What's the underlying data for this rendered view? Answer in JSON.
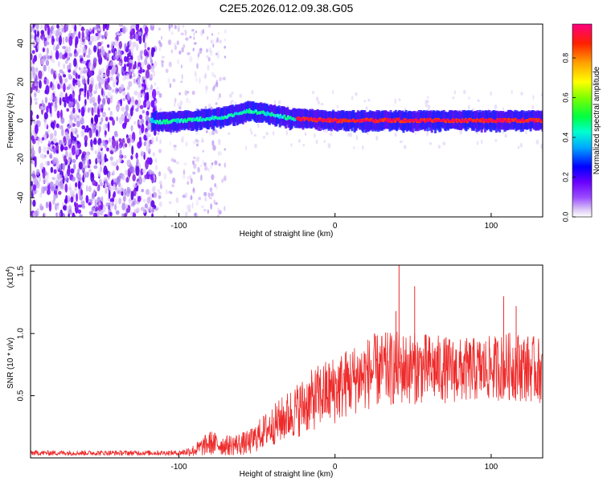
{
  "title": "C2E5.2026.012.09.38.G05",
  "chart_data": [
    {
      "type": "heatmap",
      "title": "C2E5.2026.012.09.38.G05",
      "xlabel": "Height of straight line (km)",
      "ylabel": "Frequency (Hz)",
      "xlim": [
        -195,
        133
      ],
      "ylim": [
        -50,
        50
      ],
      "x_ticks": [
        -100,
        0,
        100
      ],
      "x_tick_labels": [
        "-100",
        "0",
        "100"
      ],
      "y_ticks": [
        -40,
        -20,
        0,
        20,
        40
      ],
      "y_tick_labels": [
        "-40",
        "-20",
        "0",
        "20",
        "40"
      ],
      "colorbar": {
        "label": "Normalized spectral amplitude",
        "range": [
          0,
          0.97
        ],
        "ticks": [
          0.0,
          0.2,
          0.4,
          0.6,
          0.8
        ],
        "tick_labels": [
          "0.0",
          "0.2",
          "0.4",
          "0.6",
          "0.8"
        ],
        "colormap": [
          "#ffffff",
          "#c8a8f0",
          "#7a00ff",
          "#0000ff",
          "#00c0ff",
          "#00ff90",
          "#40ff00",
          "#ffff00",
          "#ffa000",
          "#ff0000",
          "#ff0080"
        ]
      },
      "features": {
        "broadband_noise_x": [
          -195,
          -115
        ],
        "faint_noise_x": [
          -115,
          -70
        ],
        "signal_band_center_hz": 0,
        "signal_band_halfwidth_hz": 4,
        "signal_drift": [
          {
            "x": -115,
            "y": -1
          },
          {
            "x": -95,
            "y": 0
          },
          {
            "x": -70,
            "y": 2
          },
          {
            "x": -55,
            "y": 5
          },
          {
            "x": -40,
            "y": 3
          },
          {
            "x": -28,
            "y": 1
          },
          {
            "x": 0,
            "y": 0
          },
          {
            "x": 133,
            "y": 0
          }
        ],
        "peak_amplitude_x": [
          -25,
          133
        ]
      }
    },
    {
      "type": "line",
      "xlabel": "Height of straight line (km)",
      "ylabel": "SNR (10 * v/v)",
      "y_scale_label": "(x10",
      "y_scale_exponent": "4",
      "xlim": [
        -195,
        133
      ],
      "ylim": [
        0,
        1.55
      ],
      "x_ticks": [
        -100,
        0,
        100
      ],
      "x_tick_labels": [
        "-100",
        "0",
        "100"
      ],
      "y_ticks": [
        0.5,
        1.0,
        1.5
      ],
      "y_tick_labels": [
        "0.5",
        "1.0",
        "1.5"
      ],
      "series": [
        {
          "name": "SNR",
          "color": "#ee2a2a",
          "envelope": [
            {
              "x": -195,
              "mean": 0.04,
              "spread": 0.02
            },
            {
              "x": -100,
              "mean": 0.04,
              "spread": 0.02
            },
            {
              "x": -90,
              "mean": 0.06,
              "spread": 0.05
            },
            {
              "x": -80,
              "mean": 0.12,
              "spread": 0.1
            },
            {
              "x": -70,
              "mean": 0.1,
              "spread": 0.08
            },
            {
              "x": -55,
              "mean": 0.12,
              "spread": 0.1
            },
            {
              "x": -45,
              "mean": 0.22,
              "spread": 0.14
            },
            {
              "x": -35,
              "mean": 0.3,
              "spread": 0.18
            },
            {
              "x": -25,
              "mean": 0.38,
              "spread": 0.22
            },
            {
              "x": -10,
              "mean": 0.5,
              "spread": 0.26
            },
            {
              "x": 0,
              "mean": 0.55,
              "spread": 0.28
            },
            {
              "x": 10,
              "mean": 0.62,
              "spread": 0.28
            },
            {
              "x": 25,
              "mean": 0.7,
              "spread": 0.3
            },
            {
              "x": 40,
              "mean": 0.72,
              "spread": 0.3
            },
            {
              "x": 60,
              "mean": 0.72,
              "spread": 0.28
            },
            {
              "x": 80,
              "mean": 0.7,
              "spread": 0.26
            },
            {
              "x": 100,
              "mean": 0.72,
              "spread": 0.26
            },
            {
              "x": 115,
              "mean": 0.74,
              "spread": 0.28
            },
            {
              "x": 133,
              "mean": 0.7,
              "spread": 0.26
            }
          ],
          "spikes": [
            {
              "x": 41,
              "y": 1.55
            },
            {
              "x": 51,
              "y": 1.38
            },
            {
              "x": 108,
              "y": 1.3
            },
            {
              "x": 116,
              "y": 1.22
            },
            {
              "x": 39,
              "y": 1.18
            }
          ]
        }
      ]
    }
  ]
}
